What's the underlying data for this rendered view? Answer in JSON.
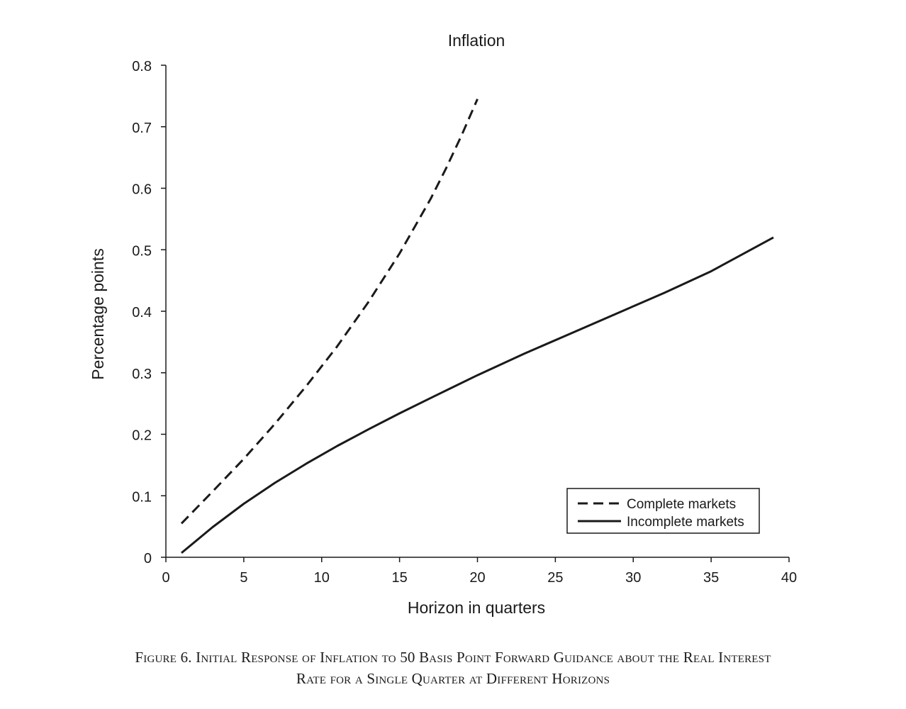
{
  "chart_data": {
    "type": "line",
    "title": "Inflation",
    "xlabel": "Horizon in quarters",
    "ylabel": "Percentage points",
    "xlim": [
      0,
      40
    ],
    "ylim": [
      0,
      0.8
    ],
    "xticks": [
      "0",
      "5",
      "10",
      "15",
      "20",
      "25",
      "30",
      "35",
      "40"
    ],
    "yticks": [
      "0",
      "0.1",
      "0.2",
      "0.3",
      "0.4",
      "0.5",
      "0.6",
      "0.7",
      "0.8"
    ],
    "grid": false,
    "legend_position": "bottom-right",
    "series": [
      {
        "name": "Complete markets",
        "style": "dashed",
        "color": "#1a1a1a",
        "x": [
          1,
          3,
          5,
          7,
          9,
          11,
          13,
          15,
          17,
          18,
          19,
          20
        ],
        "y": [
          0.055,
          0.107,
          0.16,
          0.217,
          0.278,
          0.343,
          0.415,
          0.494,
          0.583,
          0.633,
          0.687,
          0.745
        ]
      },
      {
        "name": "Incomplete markets",
        "style": "solid",
        "color": "#1a1a1a",
        "x": [
          1,
          3,
          5,
          7,
          9,
          11,
          13,
          15,
          17,
          20,
          23,
          26,
          29,
          32,
          35,
          39
        ],
        "y": [
          0.007,
          0.049,
          0.087,
          0.121,
          0.152,
          0.181,
          0.208,
          0.234,
          0.259,
          0.296,
          0.331,
          0.364,
          0.397,
          0.43,
          0.465,
          0.52
        ]
      }
    ]
  },
  "caption": {
    "line1": "Figure 6. Initial Response of Inflation to 50 Basis Point Forward Guidance about the Real Interest",
    "line2": "Rate for a Single Quarter at Different Horizons"
  }
}
